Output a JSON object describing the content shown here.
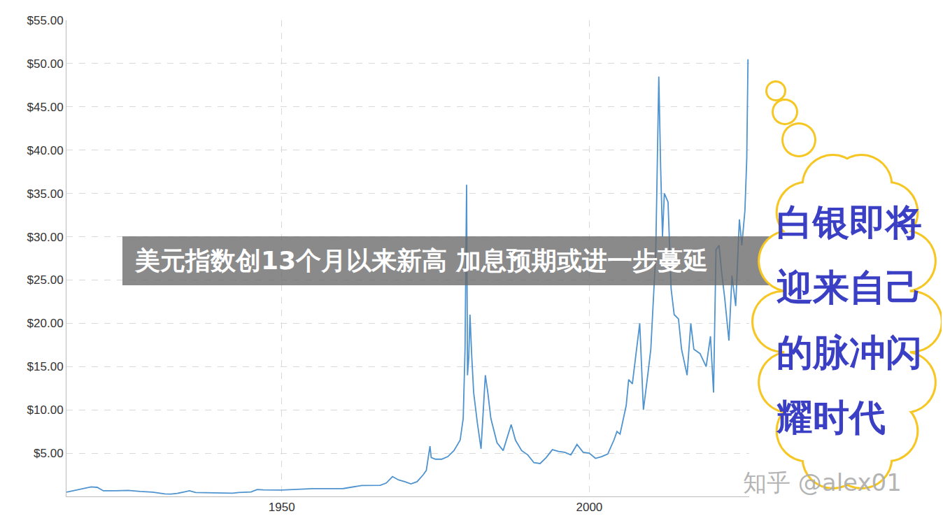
{
  "chart_data": {
    "type": "line",
    "color": "#4f93cf",
    "grid": true,
    "annotations": [
      "美元指数创13个月以来新高 加息预期或进一步蔓延",
      "白银即将迎来自己的脉冲闪耀时代",
      "知乎 @alex01"
    ],
    "xlim": [
      1915,
      2026
    ],
    "xticks": [
      1950,
      2000
    ],
    "ylim": [
      0,
      55
    ],
    "yticks": [
      {
        "value": 5,
        "label": "$5.00"
      },
      {
        "value": 10,
        "label": "$10.00"
      },
      {
        "value": 15,
        "label": "$15.00"
      },
      {
        "value": 20,
        "label": "$20.00"
      },
      {
        "value": 25,
        "label": "$25.00"
      },
      {
        "value": 30,
        "label": "$30.00"
      },
      {
        "value": 35,
        "label": "$35.00"
      },
      {
        "value": 40,
        "label": "$40.00"
      },
      {
        "value": 45,
        "label": "$45.00"
      },
      {
        "value": 50,
        "label": "$50.00"
      },
      {
        "value": 55,
        "label": "$55.00"
      }
    ],
    "x": [
      1915,
      1916,
      1917,
      1918,
      1919,
      1920,
      1921,
      1923,
      1925,
      1927,
      1929,
      1930,
      1931,
      1932,
      1933,
      1934,
      1935,
      1936,
      1938,
      1940,
      1942,
      1943,
      1945,
      1946,
      1947,
      1950,
      1955,
      1960,
      1963,
      1966,
      1967,
      1968,
      1968.5,
      1969,
      1970,
      1971,
      1972,
      1973,
      1973.5,
      1974.1,
      1974.3,
      1975,
      1976,
      1977,
      1978,
      1979,
      1979.5,
      1979.8,
      1980.05,
      1980.2,
      1980.4,
      1980.6,
      1980.9,
      1981.2,
      1981.8,
      1982.4,
      1983.1,
      1983.5,
      1984,
      1985,
      1986,
      1987.3,
      1988,
      1989,
      1990,
      1991,
      1992,
      1993,
      1994,
      1995,
      1996,
      1997,
      1998,
      1999,
      2000,
      2001,
      2002,
      2003,
      2004,
      2004.5,
      2005,
      2006,
      2006.4,
      2007,
      2008.2,
      2008.8,
      2009.5,
      2010,
      2010.8,
      2011.3,
      2011.6,
      2011.9,
      2012.2,
      2012.8,
      2013.3,
      2013.8,
      2014.5,
      2015,
      2015.9,
      2016.5,
      2017,
      2018,
      2019,
      2019.7,
      2020.2,
      2020.6,
      2021.1,
      2021.5,
      2022,
      2022.7,
      2023.2,
      2023.8,
      2024.4,
      2024.8,
      2025.3,
      2025.6,
      2025.8
    ],
    "values": [
      0.5,
      0.65,
      0.85,
      0.95,
      1.1,
      1.05,
      0.65,
      0.65,
      0.7,
      0.57,
      0.5,
      0.4,
      0.3,
      0.28,
      0.35,
      0.5,
      0.65,
      0.45,
      0.43,
      0.35,
      0.38,
      0.45,
      0.52,
      0.8,
      0.75,
      0.74,
      0.9,
      0.91,
      1.27,
      1.29,
      1.55,
      2.3,
      2.1,
      1.9,
      1.7,
      1.45,
      1.7,
      2.5,
      3.0,
      5.8,
      4.5,
      4.3,
      4.3,
      4.6,
      5.3,
      6.5,
      9,
      17,
      36,
      14,
      16,
      21,
      16,
      12,
      8.5,
      5.5,
      14,
      12,
      9,
      6.2,
      5.3,
      8.3,
      6.5,
      5.3,
      4.8,
      3.9,
      3.8,
      4.5,
      5.4,
      5.2,
      5.1,
      4.8,
      6.0,
      5.1,
      5.0,
      4.4,
      4.6,
      4.9,
      6.5,
      7.5,
      7.2,
      10.5,
      13.5,
      13,
      20,
      10,
      14,
      17,
      28,
      48.5,
      38,
      30,
      35,
      34,
      24,
      21,
      20.5,
      17,
      14,
      20,
      17,
      16.5,
      15,
      18.5,
      12,
      28.5,
      29,
      26,
      23,
      18,
      25.5,
      22,
      32,
      29,
      33,
      39,
      50.5
    ]
  }
}
